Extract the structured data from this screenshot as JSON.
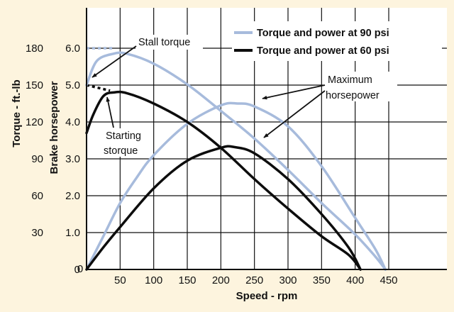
{
  "chart_data": {
    "type": "line",
    "xlabel": "Speed - rpm",
    "ylabel_torque": "Torque - ft.-lb",
    "ylabel_power": "Brake horsepower",
    "xlim": [
      0,
      450
    ],
    "xticks": [
      50,
      100,
      150,
      200,
      250,
      300,
      350,
      400,
      450
    ],
    "x_origin_label": "0",
    "hp_lim": [
      0,
      7
    ],
    "hp_ticks": [
      "0",
      "1.0",
      "2.0",
      "3.0",
      "4.0",
      "5.0",
      "6.0"
    ],
    "torque_ticks": [
      "30",
      "60",
      "90",
      "120",
      "150",
      "180"
    ],
    "torque_per_hp": 30,
    "grid": true,
    "legend_position": "top-right",
    "colors": {
      "psi90": "#a7bbdc",
      "psi60": "#0d0d0d",
      "background": "#fdf4de",
      "plot_background": "#ffffff"
    },
    "series": [
      {
        "name": "Torque and power at 90 psi",
        "color": "#a7bbdc",
        "curves": {
          "torque": {
            "x": [
              0,
              15,
              40,
              60,
              100,
              150,
              200,
              250,
              300,
              350,
              400,
              430,
              445
            ],
            "hp": [
              5.0,
              5.65,
              5.85,
              5.85,
              5.58,
              5.02,
              4.3,
              3.55,
              2.7,
              1.8,
              0.95,
              0.35,
              0
            ]
          },
          "horsepower": {
            "x": [
              0,
              25,
              50,
              75,
              100,
              150,
              200,
              225,
              250,
              300,
              350,
              400,
              430,
              445
            ],
            "hp": [
              0,
              0.9,
              1.8,
              2.5,
              3.1,
              3.95,
              4.45,
              4.5,
              4.42,
              3.88,
              2.8,
              1.4,
              0.55,
              0
            ]
          }
        }
      },
      {
        "name": "Torque and power at 60 psi",
        "color": "#0d0d0d",
        "curves": {
          "torque": {
            "x": [
              0,
              10,
              25,
              40,
              60,
              100,
              150,
              200,
              250,
              300,
              350,
              390,
              408
            ],
            "hp": [
              3.7,
              4.2,
              4.7,
              4.8,
              4.78,
              4.5,
              4.0,
              3.3,
              2.45,
              1.65,
              0.9,
              0.4,
              0
            ]
          },
          "horsepower": {
            "x": [
              0,
              25,
              50,
              100,
              150,
              200,
              220,
              250,
              300,
              350,
              390,
              408
            ],
            "hp": [
              0,
              0.6,
              1.15,
              2.2,
              2.95,
              3.3,
              3.32,
              3.15,
              2.45,
              1.5,
              0.6,
              0
            ]
          }
        }
      }
    ],
    "stall_torque_lines": [
      {
        "series": 0,
        "x": [
          0,
          40
        ],
        "hp": [
          6.0,
          6.0
        ]
      },
      {
        "series": 1,
        "x": [
          0,
          35
        ],
        "hp": [
          5.0,
          4.85
        ]
      }
    ],
    "annotations": {
      "stall_torque": "Stall torque",
      "starting_torque": [
        "Starting",
        "storque"
      ],
      "maximum_horsepower": [
        "Maximum",
        "horsepower"
      ]
    }
  }
}
